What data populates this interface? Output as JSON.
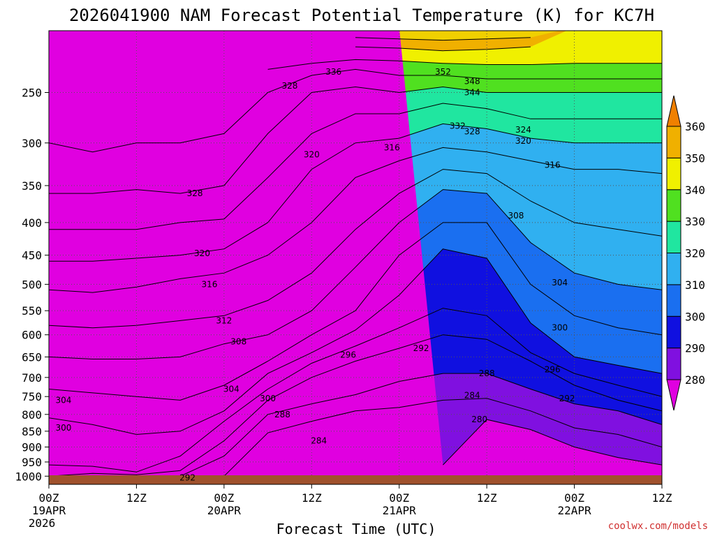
{
  "chart_data": {
    "type": "heatmap",
    "title": "2026041900 NAM Forecast Potential Temperature (K) for KC7H",
    "xlabel": "Forecast Time (UTC)",
    "credit": "coolwx.com/models",
    "x_range_hours": [
      0,
      84
    ],
    "x_ticks": [
      {
        "hour": 0,
        "label": "00Z",
        "sub": "19APR",
        "sub2": "2026"
      },
      {
        "hour": 12,
        "label": "12Z"
      },
      {
        "hour": 24,
        "label": "00Z",
        "sub": "20APR"
      },
      {
        "hour": 36,
        "label": "12Z"
      },
      {
        "hour": 48,
        "label": "00Z",
        "sub": "21APR"
      },
      {
        "hour": 60,
        "label": "12Z"
      },
      {
        "hour": 72,
        "label": "00Z",
        "sub": "22APR"
      },
      {
        "hour": 84,
        "label": "12Z"
      }
    ],
    "y_scale": "log",
    "y_range_hpa": [
      1030,
      200
    ],
    "y_ticks": [
      250,
      300,
      350,
      400,
      450,
      500,
      550,
      600,
      650,
      700,
      750,
      800,
      850,
      900,
      950,
      1000
    ],
    "colorbar": {
      "levels": [
        280,
        290,
        300,
        310,
        320,
        330,
        340,
        350,
        360
      ],
      "colors": [
        "#e000e0",
        "#8010e0",
        "#1010e0",
        "#1a6ff0",
        "#30b0f0",
        "#20e6a0",
        "#50e020",
        "#f0f000",
        "#f0b000",
        "#f08000"
      ]
    },
    "x_hours": [
      0,
      6,
      12,
      18,
      24,
      30,
      36,
      42,
      48,
      54,
      60,
      66,
      72,
      78,
      84
    ],
    "contours": [
      {
        "level": 280,
        "p": [
          null,
          null,
          null,
          null,
          null,
          null,
          null,
          null,
          null,
          960,
          815,
          845,
          900,
          935,
          960
        ]
      },
      {
        "level": 284,
        "p": [
          null,
          null,
          null,
          null,
          1000,
          855,
          820,
          790,
          780,
          760,
          755,
          790,
          840,
          860,
          900
        ]
      },
      {
        "level": 288,
        "p": [
          null,
          null,
          null,
          1000,
          930,
          800,
          770,
          745,
          710,
          690,
          690,
          730,
          770,
          790,
          830
        ]
      },
      {
        "level": 292,
        "p": [
          1000,
          990,
          995,
          980,
          880,
          760,
          700,
          660,
          630,
          600,
          610,
          660,
          720,
          760,
          790
        ]
      },
      {
        "level": 296,
        "p": [
          960,
          965,
          985,
          930,
          820,
          730,
          665,
          625,
          585,
          545,
          560,
          640,
          690,
          720,
          750
        ]
      },
      {
        "level": 300,
        "p": [
          810,
          830,
          860,
          850,
          790,
          690,
          640,
          590,
          520,
          440,
          455,
          575,
          650,
          670,
          690
        ]
      },
      {
        "level": 304,
        "p": [
          730,
          740,
          750,
          760,
          720,
          660,
          600,
          550,
          450,
          400,
          400,
          500,
          560,
          585,
          600
        ]
      },
      {
        "level": 308,
        "p": [
          650,
          655,
          655,
          650,
          620,
          600,
          550,
          470,
          400,
          355,
          360,
          430,
          480,
          500,
          510
        ]
      },
      {
        "level": 312,
        "p": [
          580,
          585,
          580,
          570,
          560,
          530,
          480,
          410,
          360,
          330,
          335,
          370,
          400,
          410,
          420
        ]
      },
      {
        "level": 316,
        "p": [
          510,
          515,
          505,
          490,
          480,
          450,
          400,
          340,
          320,
          305,
          310,
          320,
          330,
          330,
          335
        ]
      },
      {
        "level": 320,
        "p": [
          460,
          460,
          455,
          450,
          440,
          400,
          330,
          300,
          295,
          280,
          285,
          295,
          300,
          300,
          300
        ]
      },
      {
        "level": 324,
        "p": [
          410,
          410,
          410,
          400,
          395,
          340,
          290,
          270,
          270,
          260,
          265,
          275,
          275,
          275,
          275
        ]
      },
      {
        "level": 328,
        "p": [
          360,
          360,
          355,
          360,
          350,
          290,
          250,
          245,
          250,
          245,
          250,
          250,
          250,
          250,
          250
        ]
      },
      {
        "level": 332,
        "p": [
          300,
          310,
          300,
          300,
          290,
          250,
          235,
          230,
          235,
          235,
          238,
          238,
          238,
          238,
          238
        ]
      },
      {
        "level": 336,
        "p": [
          null,
          null,
          null,
          null,
          null,
          230,
          225,
          222,
          223,
          225,
          226,
          226,
          225,
          225,
          225
        ]
      },
      {
        "level": 344,
        "p": [
          null,
          null,
          null,
          null,
          null,
          null,
          null,
          212,
          213,
          215,
          214,
          212,
          null,
          null,
          null
        ]
      },
      {
        "level": 352,
        "p": [
          null,
          null,
          null,
          null,
          null,
          null,
          null,
          205,
          206,
          207,
          206,
          205,
          null,
          null,
          null
        ]
      }
    ],
    "contour_labels": [
      {
        "text": "352",
        "hour": 54,
        "p": 232
      },
      {
        "text": "348",
        "hour": 58,
        "p": 240
      },
      {
        "text": "344",
        "hour": 58,
        "p": 250
      },
      {
        "text": "336",
        "hour": 39,
        "p": 232
      },
      {
        "text": "332",
        "hour": 56,
        "p": 282
      },
      {
        "text": "328",
        "hour": 58,
        "p": 288
      },
      {
        "text": "328",
        "hour": 33,
        "p": 244
      },
      {
        "text": "324",
        "hour": 65,
        "p": 286
      },
      {
        "text": "320",
        "hour": 65,
        "p": 298
      },
      {
        "text": "316",
        "hour": 69,
        "p": 325
      },
      {
        "text": "316",
        "hour": 47,
        "p": 305
      },
      {
        "text": "320",
        "hour": 36,
        "p": 313
      },
      {
        "text": "328",
        "hour": 20,
        "p": 360
      },
      {
        "text": "320",
        "hour": 21,
        "p": 447
      },
      {
        "text": "316",
        "hour": 22,
        "p": 500
      },
      {
        "text": "312",
        "hour": 24,
        "p": 570
      },
      {
        "text": "308",
        "hour": 26,
        "p": 615
      },
      {
        "text": "308",
        "hour": 64,
        "p": 390
      },
      {
        "text": "304",
        "hour": 70,
        "p": 497
      },
      {
        "text": "300",
        "hour": 70,
        "p": 585
      },
      {
        "text": "296",
        "hour": 41,
        "p": 645
      },
      {
        "text": "292",
        "hour": 51,
        "p": 630
      },
      {
        "text": "296",
        "hour": 69,
        "p": 680
      },
      {
        "text": "288",
        "hour": 60,
        "p": 690
      },
      {
        "text": "284",
        "hour": 58,
        "p": 747
      },
      {
        "text": "292",
        "hour": 71,
        "p": 755
      },
      {
        "text": "280",
        "hour": 59,
        "p": 815
      },
      {
        "text": "288",
        "hour": 32,
        "p": 800
      },
      {
        "text": "284",
        "hour": 37,
        "p": 880
      },
      {
        "text": "304",
        "hour": 25,
        "p": 730
      },
      {
        "text": "300",
        "hour": 30,
        "p": 755
      },
      {
        "text": "304",
        "hour": 2,
        "p": 760
      },
      {
        "text": "300",
        "hour": 2,
        "p": 840
      },
      {
        "text": "292",
        "hour": 19,
        "p": 1005
      }
    ]
  }
}
